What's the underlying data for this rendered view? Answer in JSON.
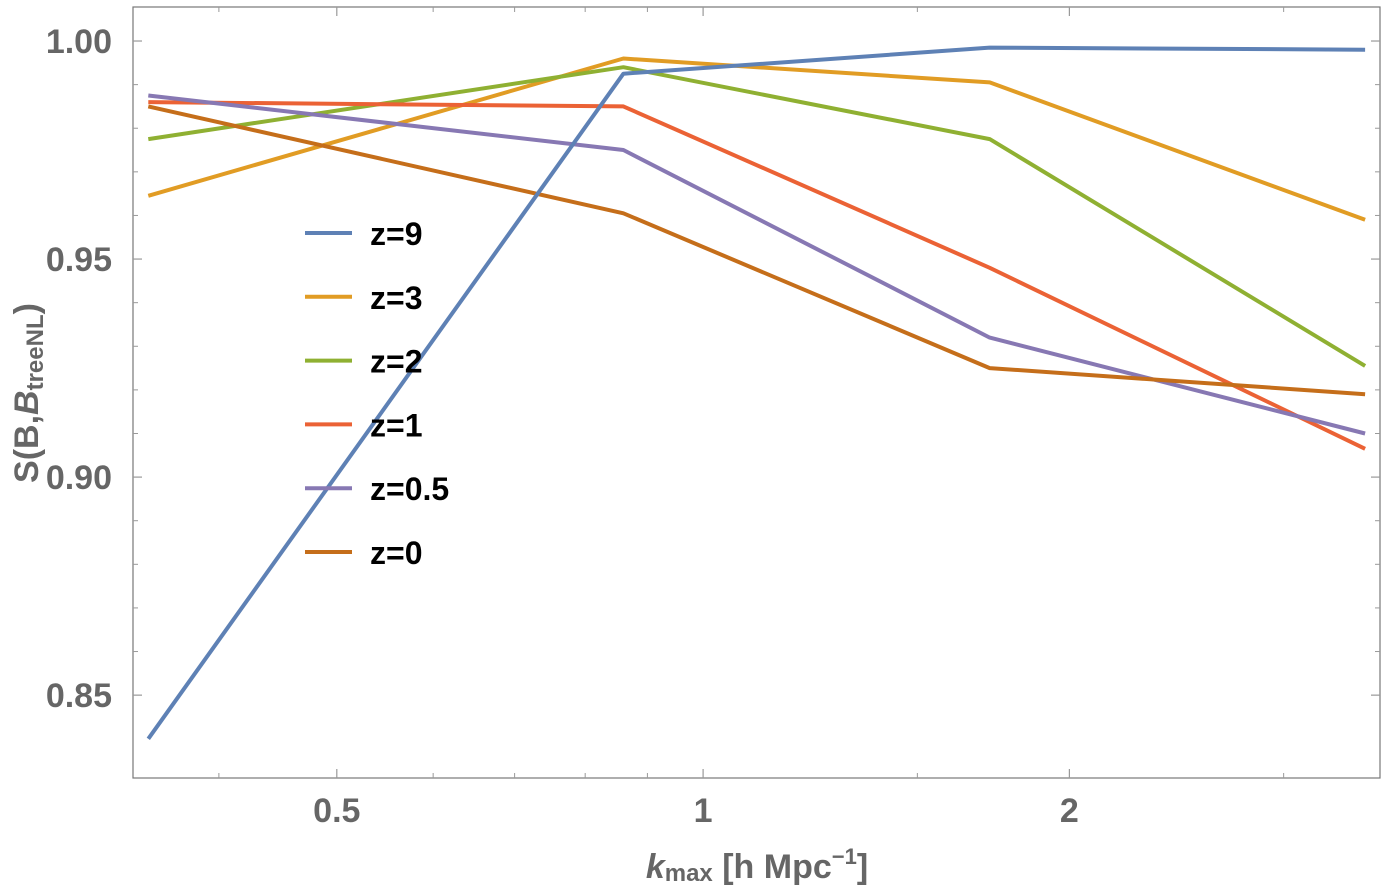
{
  "chart_data": {
    "type": "line",
    "title": "",
    "xscale": "log",
    "xlim": [
      0.34,
      3.6
    ],
    "ylim": [
      0.831,
      1.0078
    ],
    "xlabel": {
      "main": "k",
      "sub": "max",
      "rest": " [h Mpc",
      "sup": "−1",
      "close": "]"
    },
    "ylabel": {
      "main": "S(B,",
      "italic": "B",
      "sub": "treeNL",
      "close": ")"
    },
    "xticks": [
      {
        "value": 0.5,
        "label": "0.5"
      },
      {
        "value": 1,
        "label": "1"
      },
      {
        "value": 2,
        "label": "2"
      }
    ],
    "xminorticks": [
      0.4,
      0.6,
      0.7,
      0.8,
      0.9,
      1.5,
      3
    ],
    "yticks": [
      {
        "value": 0.85,
        "label": "0.85"
      },
      {
        "value": 0.9,
        "label": "0.90"
      },
      {
        "value": 0.95,
        "label": "0.95"
      },
      {
        "value": 1.0,
        "label": "1.00"
      }
    ],
    "yminorticks": [
      0.86,
      0.87,
      0.88,
      0.89,
      0.91,
      0.92,
      0.93,
      0.94,
      0.96,
      0.97,
      0.98,
      0.99
    ],
    "x": [
      0.35,
      0.86,
      1.72,
      3.5
    ],
    "series": [
      {
        "name": "z=9",
        "color": "#5e81b5",
        "values": [
          0.84,
          0.9925,
          0.9985,
          0.998
        ]
      },
      {
        "name": "z=3",
        "color": "#e19c24",
        "values": [
          0.9645,
          0.996,
          0.9905,
          0.959
        ]
      },
      {
        "name": "z=2",
        "color": "#8fb032",
        "values": [
          0.9775,
          0.994,
          0.9775,
          0.9255
        ]
      },
      {
        "name": "z=1",
        "color": "#eb6235",
        "values": [
          0.986,
          0.985,
          0.948,
          0.9065
        ]
      },
      {
        "name": "z=0.5",
        "color": "#8778b3",
        "values": [
          0.9875,
          0.975,
          0.932,
          0.91
        ]
      },
      {
        "name": "z=0",
        "color": "#c56e1a",
        "values": [
          0.985,
          0.9605,
          0.925,
          0.919
        ]
      }
    ],
    "legend_position": "middle-left",
    "grid": false
  }
}
